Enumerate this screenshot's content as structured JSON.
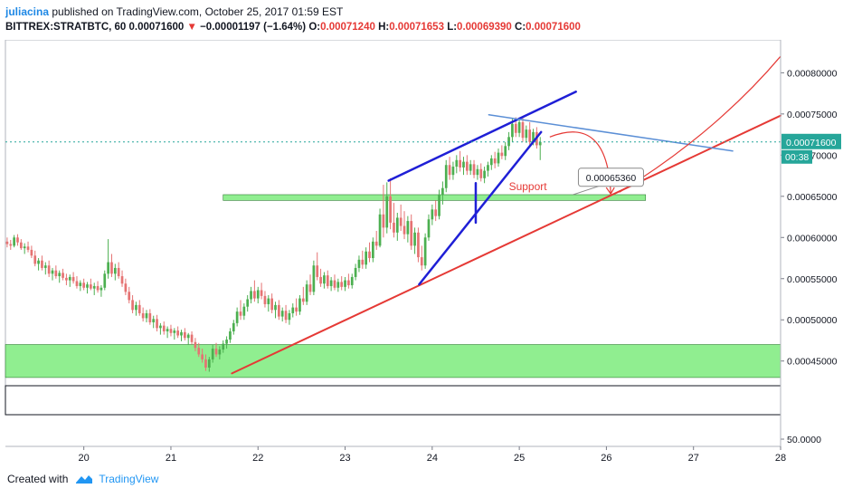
{
  "header": {
    "author": "juliacina",
    "published": "published on TradingView.com, October 25, 2017 01:59 EST",
    "symbol": "BITTREX:STRATBTC, 60",
    "last": "0.00071600",
    "change_arrow": "▼",
    "change": "−0.00001197 (−1.64%)",
    "o_label": "O:",
    "o": "0.00071240",
    "h_label": "H:",
    "h": "0.00071653",
    "l_label": "L:",
    "l": "0.00069390",
    "c_label": "C:",
    "c": "0.00071600"
  },
  "footer": {
    "created_with": "Created with",
    "brand": "TradingView",
    "logo_icon": "tradingview-logo-icon"
  },
  "chart_data": {
    "type": "candlestick",
    "x_ticks": [
      "20",
      "21",
      "22",
      "23",
      "24",
      "25",
      "26",
      "27",
      "28"
    ],
    "x_range": [
      19.1,
      28.0
    ],
    "y_ticks": [
      "0.00080000",
      "0.00075000",
      "0.00070000",
      "0.00065000",
      "0.00060000",
      "0.00055000",
      "0.00050000",
      "0.00045000"
    ],
    "y_range": [
      0.00042,
      0.00084
    ],
    "lower_pane_ticks": [
      "50.0000"
    ],
    "current_price": "0.00071600",
    "countdown": "00:38",
    "support_label": "Support",
    "callout_value": "0.00065360",
    "zones": [
      {
        "x0": 19.1,
        "x1": 28.0,
        "y0": 0.00043,
        "y1": 0.00047,
        "color": "#90ee90"
      },
      {
        "x0": 21.6,
        "x1": 26.45,
        "y0": 0.000645,
        "y1": 0.000652,
        "color": "#90ee90"
      }
    ],
    "trendlines": [
      {
        "x0": 21.7,
        "x1": 28.0,
        "y0": 0.000435,
        "y1": 0.000748,
        "color": "#e53935",
        "width": 2
      },
      {
        "x0": 23.5,
        "x1": 25.65,
        "y0": 0.000669,
        "y1": 0.000777,
        "color": "#1f1fd6",
        "width": 2.5
      },
      {
        "x0": 23.85,
        "x1": 25.25,
        "y0": 0.000543,
        "y1": 0.000728,
        "color": "#1f1fd6",
        "width": 2.5
      },
      {
        "x0": 24.5,
        "x1": 24.5,
        "y0": 0.000618,
        "y1": 0.000666,
        "color": "#1f1fd6",
        "width": 2.5
      },
      {
        "x0": 24.65,
        "x1": 27.45,
        "y0": 0.000749,
        "y1": 0.000705,
        "color": "#5b8fd6",
        "width": 1.5
      }
    ],
    "arc_from": {
      "x": 25.35,
      "y": 0.000722
    },
    "arc_to": {
      "x": 26.05,
      "y": 0.000653
    },
    "projection_curve": [
      {
        "x": 26.15,
        "y": 0.000655
      },
      {
        "x": 27.0,
        "y": 0.00071
      },
      {
        "x": 27.6,
        "y": 0.00077
      },
      {
        "x": 28.0,
        "y": 0.00082
      }
    ],
    "candles": [
      [
        19.12,
        0.000595,
        0.0006,
        0.000588,
        0.000592
      ],
      [
        19.16,
        0.000592,
        0.000597,
        0.000585,
        0.00059
      ],
      [
        19.2,
        0.00059,
        0.000603,
        0.000588,
        0.0006
      ],
      [
        19.24,
        0.0006,
        0.000604,
        0.00059,
        0.000594
      ],
      [
        19.28,
        0.000594,
        0.000598,
        0.000585,
        0.000587
      ],
      [
        19.32,
        0.000587,
        0.000593,
        0.00058,
        0.000589
      ],
      [
        19.36,
        0.000589,
        0.000595,
        0.000582,
        0.000585
      ],
      [
        19.4,
        0.000585,
        0.00059,
        0.000575,
        0.000578
      ],
      [
        19.44,
        0.000578,
        0.000584,
        0.000565,
        0.000568
      ],
      [
        19.48,
        0.000568,
        0.000575,
        0.00056,
        0.000572
      ],
      [
        19.52,
        0.000572,
        0.000578,
        0.00056,
        0.000563
      ],
      [
        19.56,
        0.000563,
        0.00057,
        0.000555,
        0.000566
      ],
      [
        19.6,
        0.000566,
        0.000572,
        0.000552,
        0.000556
      ],
      [
        19.64,
        0.000556,
        0.000563,
        0.000548,
        0.00056
      ],
      [
        19.68,
        0.00056,
        0.000566,
        0.00055,
        0.000553
      ],
      [
        19.72,
        0.000553,
        0.00056,
        0.000545,
        0.000557
      ],
      [
        19.76,
        0.000557,
        0.000562,
        0.000548,
        0.000551
      ],
      [
        19.8,
        0.000551,
        0.000556,
        0.000542,
        0.000548
      ],
      [
        19.84,
        0.000548,
        0.000555,
        0.00054,
        0.000552
      ],
      [
        19.88,
        0.000552,
        0.000558,
        0.000544,
        0.000547
      ],
      [
        19.92,
        0.000547,
        0.000553,
        0.000538,
        0.000541
      ],
      [
        19.96,
        0.000541,
        0.000548,
        0.000535,
        0.000545
      ],
      [
        20.0,
        0.000545,
        0.00055,
        0.000536,
        0.000539
      ],
      [
        20.04,
        0.000539,
        0.000546,
        0.000532,
        0.000543
      ],
      [
        20.08,
        0.000543,
        0.00055,
        0.000536,
        0.000538
      ],
      [
        20.12,
        0.000538,
        0.000545,
        0.00053,
        0.000541
      ],
      [
        20.16,
        0.000541,
        0.000547,
        0.000533,
        0.000536
      ],
      [
        20.2,
        0.000536,
        0.000542,
        0.000528,
        0.000539
      ],
      [
        20.24,
        0.000539,
        0.00056,
        0.000536,
        0.000556
      ],
      [
        20.28,
        0.000556,
        0.000598,
        0.00055,
        0.00057
      ],
      [
        20.32,
        0.00057,
        0.00058,
        0.000552,
        0.000556
      ],
      [
        20.36,
        0.000556,
        0.000568,
        0.000548,
        0.000563
      ],
      [
        20.4,
        0.000563,
        0.00057,
        0.00055,
        0.000553
      ],
      [
        20.44,
        0.000553,
        0.00056,
        0.00054,
        0.000544
      ],
      [
        20.48,
        0.000544,
        0.00055,
        0.00053,
        0.000534
      ],
      [
        20.52,
        0.000534,
        0.00054,
        0.00052,
        0.000524
      ],
      [
        20.56,
        0.000524,
        0.00053,
        0.000508,
        0.000512
      ],
      [
        20.6,
        0.000512,
        0.000522,
        0.000505,
        0.000518
      ],
      [
        20.64,
        0.000518,
        0.000524,
        0.000505,
        0.000508
      ],
      [
        20.68,
        0.000508,
        0.000515,
        0.000498,
        0.000502
      ],
      [
        20.72,
        0.000502,
        0.000512,
        0.000497,
        0.000508
      ],
      [
        20.76,
        0.000508,
        0.000513,
        0.000494,
        0.000497
      ],
      [
        20.8,
        0.000497,
        0.000505,
        0.00049,
        0.000501
      ],
      [
        20.84,
        0.000501,
        0.000506,
        0.000486,
        0.00049
      ],
      [
        20.88,
        0.00049,
        0.000496,
        0.000482,
        0.000493
      ],
      [
        20.92,
        0.000493,
        0.000498,
        0.000482,
        0.000486
      ],
      [
        20.96,
        0.000486,
        0.000492,
        0.000478,
        0.000489
      ],
      [
        21.0,
        0.000489,
        0.000494,
        0.00048,
        0.000484
      ],
      [
        21.04,
        0.000484,
        0.00049,
        0.000476,
        0.000487
      ],
      [
        21.08,
        0.000487,
        0.000492,
        0.000478,
        0.000481
      ],
      [
        21.12,
        0.000481,
        0.000488,
        0.000474,
        0.000485
      ],
      [
        21.16,
        0.000485,
        0.00049,
        0.000475,
        0.000478
      ],
      [
        21.2,
        0.000478,
        0.000484,
        0.00047,
        0.000482
      ],
      [
        21.24,
        0.000482,
        0.000486,
        0.00047,
        0.000473
      ],
      [
        21.28,
        0.000473,
        0.000478,
        0.000462,
        0.000466
      ],
      [
        21.32,
        0.000466,
        0.000472,
        0.000455,
        0.000458
      ],
      [
        21.36,
        0.000458,
        0.000465,
        0.000448,
        0.000452
      ],
      [
        21.4,
        0.000452,
        0.000458,
        0.000438,
        0.000442
      ],
      [
        21.44,
        0.000442,
        0.000455,
        0.000437,
        0.000452
      ],
      [
        21.48,
        0.000452,
        0.00047,
        0.000448,
        0.000465
      ],
      [
        21.52,
        0.000465,
        0.000472,
        0.000455,
        0.000458
      ],
      [
        21.56,
        0.000458,
        0.000468,
        0.000452,
        0.000464
      ],
      [
        21.6,
        0.000464,
        0.000475,
        0.00046,
        0.000471
      ],
      [
        21.64,
        0.000471,
        0.00048,
        0.000465,
        0.000476
      ],
      [
        21.68,
        0.000476,
        0.00049,
        0.000472,
        0.000486
      ],
      [
        21.72,
        0.000486,
        0.0005,
        0.000482,
        0.000496
      ],
      [
        21.76,
        0.000496,
        0.000515,
        0.000492,
        0.00051
      ],
      [
        21.8,
        0.00051,
        0.000524,
        0.0005,
        0.000505
      ],
      [
        21.84,
        0.000505,
        0.00052,
        0.0005,
        0.000516
      ],
      [
        21.88,
        0.000516,
        0.00053,
        0.00051,
        0.000525
      ],
      [
        21.92,
        0.000525,
        0.00054,
        0.00052,
        0.000535
      ],
      [
        21.96,
        0.000535,
        0.000548,
        0.000522,
        0.000526
      ],
      [
        22.0,
        0.000526,
        0.00054,
        0.00052,
        0.000536
      ],
      [
        22.04,
        0.000536,
        0.000545,
        0.000525,
        0.000529
      ],
      [
        22.08,
        0.000529,
        0.000535,
        0.000515,
        0.000519
      ],
      [
        22.12,
        0.000519,
        0.00053,
        0.00051,
        0.000526
      ],
      [
        22.16,
        0.000526,
        0.000532,
        0.000508,
        0.000512
      ],
      [
        22.2,
        0.000512,
        0.000522,
        0.000502,
        0.000518
      ],
      [
        22.24,
        0.000518,
        0.000524,
        0.0005,
        0.000504
      ],
      [
        22.28,
        0.000504,
        0.000515,
        0.000498,
        0.000511
      ],
      [
        22.32,
        0.000511,
        0.000518,
        0.000496,
        0.0005
      ],
      [
        22.36,
        0.0005,
        0.000512,
        0.000494,
        0.000508
      ],
      [
        22.4,
        0.000508,
        0.00052,
        0.000503,
        0.000515
      ],
      [
        22.44,
        0.000515,
        0.000526,
        0.000505,
        0.00051
      ],
      [
        22.48,
        0.00051,
        0.00053,
        0.000506,
        0.000526
      ],
      [
        22.52,
        0.000526,
        0.00054,
        0.000518,
        0.000522
      ],
      [
        22.56,
        0.000522,
        0.000548,
        0.000518,
        0.000543
      ],
      [
        22.6,
        0.000543,
        0.000555,
        0.00053,
        0.000534
      ],
      [
        22.64,
        0.000534,
        0.000572,
        0.00053,
        0.000566
      ],
      [
        22.68,
        0.000566,
        0.000582,
        0.000548,
        0.000552
      ],
      [
        22.72,
        0.000552,
        0.000562,
        0.00054,
        0.000544
      ],
      [
        22.76,
        0.000544,
        0.000558,
        0.000538,
        0.000554
      ],
      [
        22.8,
        0.000554,
        0.00056,
        0.000538,
        0.000541
      ],
      [
        22.84,
        0.000541,
        0.000552,
        0.000535,
        0.000548
      ],
      [
        22.88,
        0.000548,
        0.000555,
        0.000536,
        0.000539
      ],
      [
        22.92,
        0.000539,
        0.00055,
        0.000534,
        0.000546
      ],
      [
        22.96,
        0.000546,
        0.000553,
        0.000536,
        0.00054
      ],
      [
        23.0,
        0.00054,
        0.000552,
        0.000535,
        0.000548
      ],
      [
        23.04,
        0.000548,
        0.000556,
        0.000538,
        0.000542
      ],
      [
        23.08,
        0.000542,
        0.000556,
        0.000538,
        0.000552
      ],
      [
        23.12,
        0.000552,
        0.000568,
        0.000548,
        0.000563
      ],
      [
        23.16,
        0.000563,
        0.000578,
        0.000558,
        0.000573
      ],
      [
        23.2,
        0.000573,
        0.000584,
        0.000562,
        0.000567
      ],
      [
        23.24,
        0.000567,
        0.000588,
        0.000562,
        0.000583
      ],
      [
        23.28,
        0.000583,
        0.000594,
        0.00057,
        0.000575
      ],
      [
        23.32,
        0.000575,
        0.0006,
        0.00057,
        0.000595
      ],
      [
        23.36,
        0.000595,
        0.000608,
        0.000585,
        0.00059
      ],
      [
        23.4,
        0.00059,
        0.000635,
        0.000588,
        0.000628
      ],
      [
        23.44,
        0.000628,
        0.000664,
        0.0006,
        0.000612
      ],
      [
        23.48,
        0.000612,
        0.000667,
        0.000605,
        0.00065
      ],
      [
        23.52,
        0.00065,
        0.000672,
        0.00061,
        0.000618
      ],
      [
        23.56,
        0.000618,
        0.000642,
        0.0006,
        0.000606
      ],
      [
        23.6,
        0.000606,
        0.00063,
        0.000596,
        0.000624
      ],
      [
        23.64,
        0.000624,
        0.00064,
        0.000608,
        0.000614
      ],
      [
        23.68,
        0.000614,
        0.000632,
        0.000598,
        0.000604
      ],
      [
        23.72,
        0.000604,
        0.000626,
        0.000594,
        0.00062
      ],
      [
        23.76,
        0.00062,
        0.000628,
        0.000585,
        0.00059
      ],
      [
        23.8,
        0.00059,
        0.000612,
        0.00058,
        0.000606
      ],
      [
        23.84,
        0.000606,
        0.000612,
        0.00057,
        0.000576
      ],
      [
        23.88,
        0.000576,
        0.00059,
        0.00056,
        0.000566
      ],
      [
        23.92,
        0.000566,
        0.000605,
        0.000562,
        0.0006
      ],
      [
        23.96,
        0.0006,
        0.000628,
        0.000596,
        0.000622
      ],
      [
        24.0,
        0.000622,
        0.00064,
        0.000615,
        0.000634
      ],
      [
        24.04,
        0.000634,
        0.000645,
        0.00062,
        0.000626
      ],
      [
        24.08,
        0.000626,
        0.000658,
        0.000622,
        0.000652
      ],
      [
        24.12,
        0.000652,
        0.000668,
        0.00064,
        0.00066
      ],
      [
        24.16,
        0.00066,
        0.000694,
        0.000655,
        0.000688
      ],
      [
        24.2,
        0.000688,
        0.000698,
        0.00067,
        0.000676
      ],
      [
        24.24,
        0.000676,
        0.000692,
        0.00067,
        0.000686
      ],
      [
        24.28,
        0.000686,
        0.0007,
        0.000678,
        0.000694
      ],
      [
        24.32,
        0.000694,
        0.000705,
        0.00068,
        0.000685
      ],
      [
        24.36,
        0.000685,
        0.000698,
        0.000676,
        0.000692
      ],
      [
        24.4,
        0.000692,
        0.0007,
        0.000676,
        0.000681
      ],
      [
        24.44,
        0.000681,
        0.000694,
        0.000676,
        0.000689
      ],
      [
        24.48,
        0.000689,
        0.000694,
        0.000672,
        0.000676
      ],
      [
        24.52,
        0.000676,
        0.000688,
        0.00067,
        0.000683
      ],
      [
        24.56,
        0.000683,
        0.00069,
        0.000668,
        0.000672
      ],
      [
        24.6,
        0.000672,
        0.000686,
        0.000666,
        0.000681
      ],
      [
        24.64,
        0.000681,
        0.000692,
        0.000674,
        0.000688
      ],
      [
        24.68,
        0.000688,
        0.0007,
        0.000682,
        0.000696
      ],
      [
        24.72,
        0.000696,
        0.000704,
        0.000684,
        0.00069
      ],
      [
        24.76,
        0.00069,
        0.000708,
        0.000686,
        0.000703
      ],
      [
        24.8,
        0.000703,
        0.000712,
        0.000695,
        0.000699
      ],
      [
        24.84,
        0.000699,
        0.000716,
        0.000694,
        0.000711
      ],
      [
        24.88,
        0.000711,
        0.000728,
        0.000706,
        0.000722
      ],
      [
        24.92,
        0.000722,
        0.000745,
        0.000716,
        0.000738
      ],
      [
        24.96,
        0.000738,
        0.000746,
        0.000722,
        0.000727
      ],
      [
        25.0,
        0.000727,
        0.000744,
        0.000722,
        0.00074
      ],
      [
        25.04,
        0.00074,
        0.000746,
        0.000716,
        0.000721
      ],
      [
        25.08,
        0.000721,
        0.000736,
        0.000715,
        0.000731
      ],
      [
        25.12,
        0.000731,
        0.00074,
        0.000712,
        0.000716
      ],
      [
        25.16,
        0.000716,
        0.000732,
        0.000712,
        0.000728
      ],
      [
        25.2,
        0.000728,
        0.000734,
        0.000708,
        0.000712
      ],
      [
        25.24,
        0.000712,
        0.000722,
        0.000694,
        0.000716
      ]
    ]
  }
}
